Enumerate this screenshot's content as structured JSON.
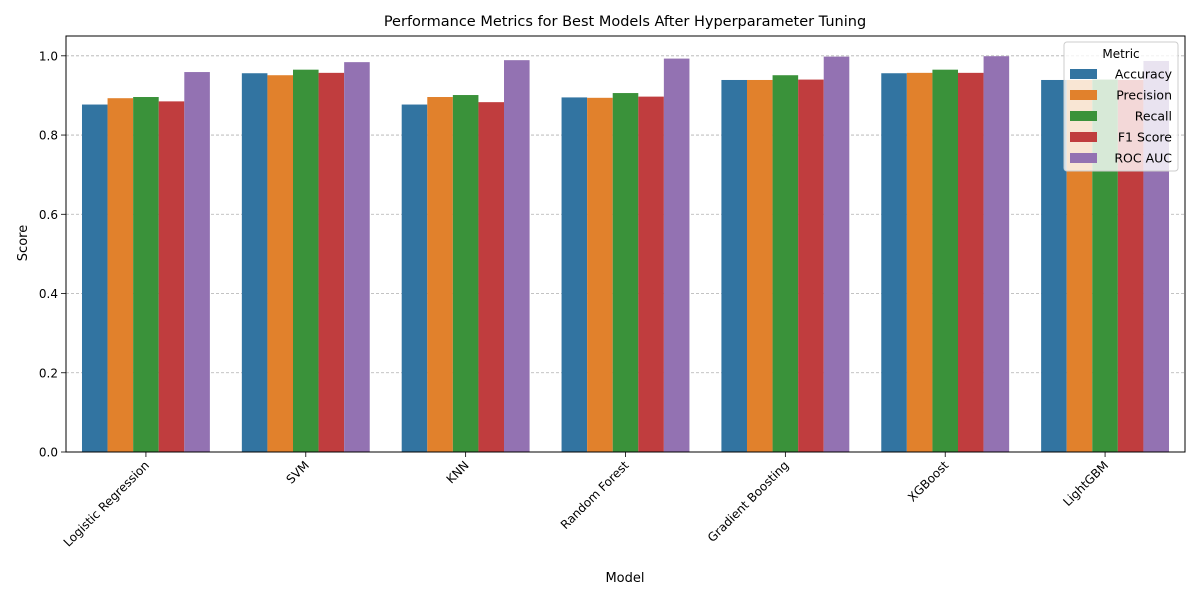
{
  "chart_data": {
    "type": "bar",
    "title": "Performance Metrics for Best Models After Hyperparameter Tuning",
    "xlabel": "Model",
    "ylabel": "Score",
    "ylim": [
      0,
      1.05
    ],
    "yticks": [
      0.0,
      0.2,
      0.4,
      0.6,
      0.8,
      1.0
    ],
    "ytick_labels": [
      "0.0",
      "0.2",
      "0.4",
      "0.6",
      "0.8",
      "1.0"
    ],
    "grid": "y, dashed",
    "legend": {
      "title": "Metric",
      "placement": "top-right"
    },
    "categories": [
      "Logistic Regression",
      "SVM",
      "KNN",
      "Random Forest",
      "Gradient Boosting",
      "XGBoost",
      "LightGBM"
    ],
    "series": [
      {
        "name": "Accuracy",
        "color": "#3274a1",
        "values": [
          0.877,
          0.956,
          0.877,
          0.895,
          0.939,
          0.956,
          0.939
        ]
      },
      {
        "name": "Precision",
        "color": "#e1812c",
        "values": [
          0.893,
          0.951,
          0.896,
          0.894,
          0.939,
          0.957,
          0.939
        ]
      },
      {
        "name": "Recall",
        "color": "#3a923a",
        "values": [
          0.896,
          0.965,
          0.901,
          0.906,
          0.951,
          0.965,
          0.94
        ]
      },
      {
        "name": "F1 Score",
        "color": "#c03d3e",
        "values": [
          0.885,
          0.957,
          0.883,
          0.897,
          0.94,
          0.957,
          0.939
        ]
      },
      {
        "name": "ROC AUC",
        "color": "#9372b2",
        "values": [
          0.959,
          0.984,
          0.989,
          0.993,
          0.998,
          0.999,
          0.987
        ]
      }
    ]
  }
}
